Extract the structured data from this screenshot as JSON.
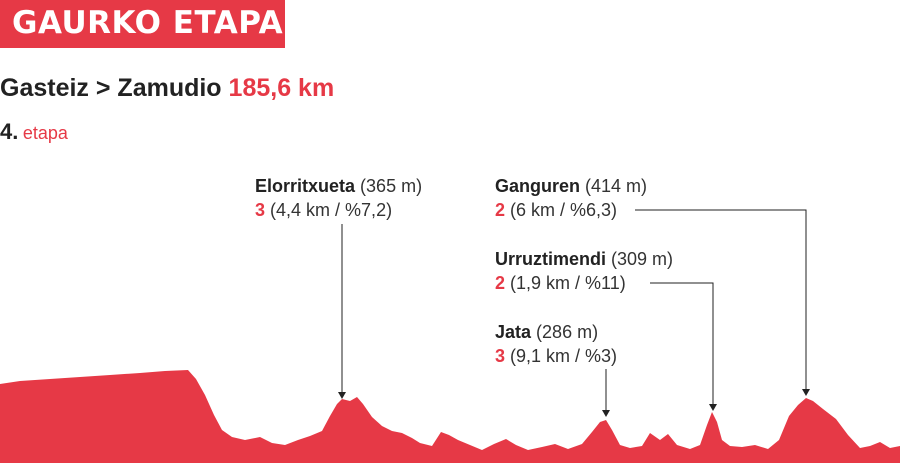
{
  "header": {
    "title": "GAURKO ETAPA"
  },
  "route": {
    "from_to": "Gasteiz > Zamudio",
    "distance": "185,6 km"
  },
  "stage": {
    "number": "4.",
    "label": "etapa"
  },
  "climbs": [
    {
      "name": "Elorritxueta",
      "altitude": "(365 m)",
      "category": "3",
      "details": "(4,4 km / %7,2)"
    },
    {
      "name": "Ganguren",
      "altitude": "(414 m)",
      "category": "2",
      "details": "(6 km / %6,3)"
    },
    {
      "name": "Urruztimendi",
      "altitude": "(309 m)",
      "category": "2",
      "details": "(1,9 km / %11)"
    },
    {
      "name": "Jata",
      "altitude": "(286 m)",
      "category": "3",
      "details": "(9,1 km / %3)"
    }
  ],
  "colors": {
    "accent": "#e63946",
    "text": "#222222"
  }
}
